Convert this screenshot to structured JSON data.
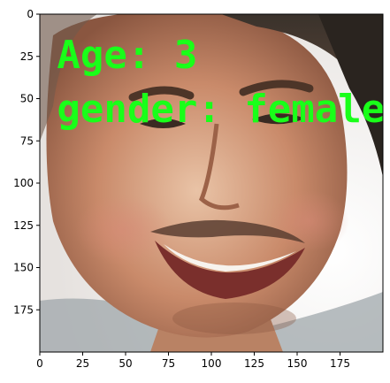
{
  "chart_data": {
    "type": "image",
    "xlim": [
      0,
      200
    ],
    "ylim": [
      200,
      0
    ],
    "x_ticks": [
      0,
      25,
      50,
      75,
      100,
      125,
      150,
      175
    ],
    "y_ticks": [
      0,
      25,
      50,
      75,
      100,
      125,
      150,
      175
    ],
    "image": {
      "description": "Close-up photo of a smiling man's face",
      "overlay_text": [
        {
          "text": "Age: 3",
          "x": 10,
          "y": 32,
          "color": "#19ff19"
        },
        {
          "text": "gender: female",
          "x": 10,
          "y": 64,
          "color": "#19ff19"
        }
      ]
    },
    "colors": {
      "overlay": "#19ff19",
      "skin_mid": "#c98a6a",
      "skin_light": "#e9c0a4",
      "hair": "#2c2621",
      "background": "#f3f3f3"
    }
  }
}
